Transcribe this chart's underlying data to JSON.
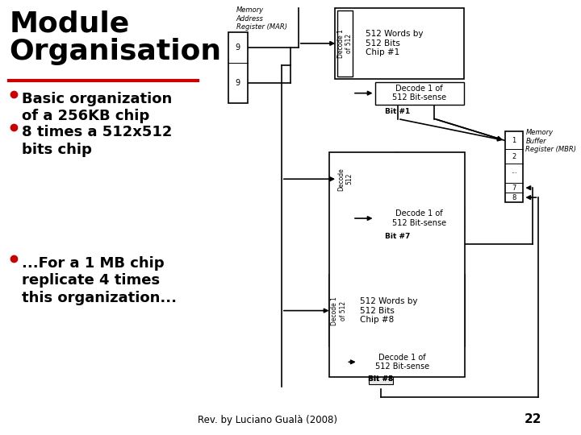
{
  "title": "Module\nOrganisation",
  "title_color": "#000000",
  "title_fontsize": 26,
  "title_fontweight": "bold",
  "separator_color": "#cc0000",
  "bg_color": "#ffffff",
  "bullet_color": "#cc0000",
  "bullet_fontsize": 13,
  "bullet_fontweight": "bold",
  "bullets": [
    "Basic organization\nof a 256KB chip",
    "8 times a 512x512\nbits chip"
  ],
  "bullet3": "...For a 1 MB chip\nreplicate 4 times\nthis organization...",
  "footer": "Rev. by Luciano Gualà (2008)",
  "page_number": "22",
  "mar_label": "Memory\nAddress\nRegister (MAR)",
  "mbr_label": "Memory\nBuffer\nRegister (MBR)",
  "chip1_label": "512 Words by\n512 Bits\nChip #1",
  "chip8_label": "512 Words by\n512 Bits\nChip #8",
  "decode_bitsense_label": "Decode 1 of\n512 Bit-sense",
  "bit1_label": "Bit #1",
  "bit7_label": "Bit #7",
  "bit8_label": "Bit #8",
  "dec1_vert_label": "Decode 1\nof 512",
  "dec2_vert_label": "Decode\n512",
  "dec3_vert_label": "Decode 1\nof 512"
}
